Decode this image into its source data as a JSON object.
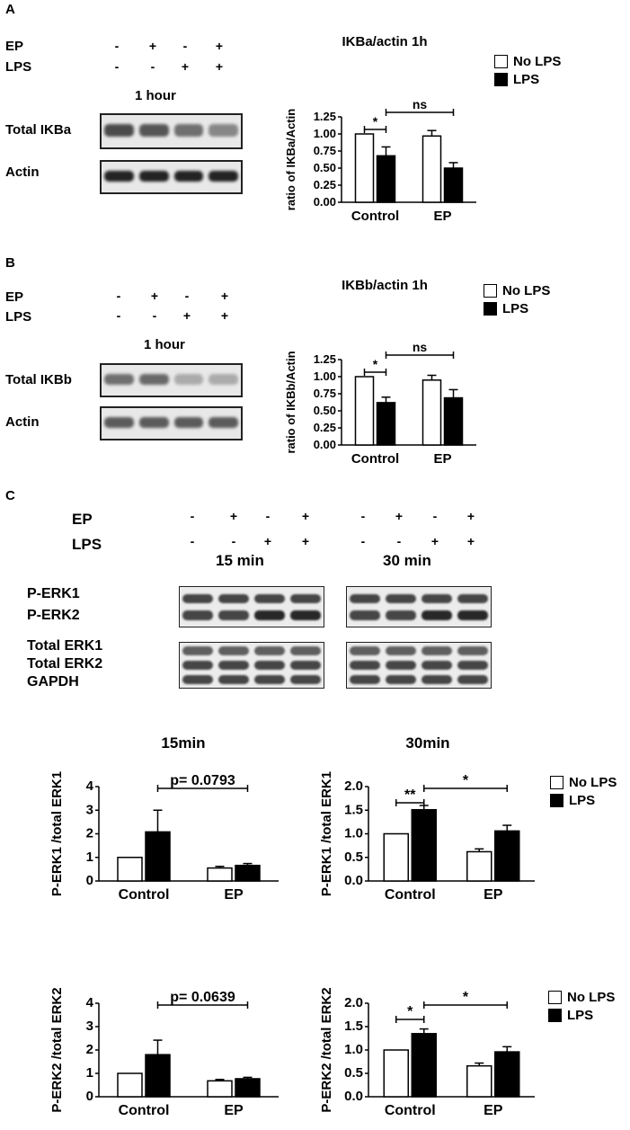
{
  "panels": [
    {
      "letter": "A",
      "treatments": [
        {
          "label": "EP",
          "signs": [
            "-",
            "+",
            "-",
            "+"
          ]
        },
        {
          "label": "LPS",
          "signs": [
            "-",
            "-",
            "+",
            "+"
          ]
        }
      ],
      "time": "1 hour",
      "blots": [
        {
          "label": "Total IKBa",
          "intensity": [
            0.8,
            0.75,
            0.62,
            0.5
          ]
        },
        {
          "label": "Actin",
          "intensity": [
            1.0,
            1.0,
            1.0,
            1.0
          ]
        }
      ]
    },
    {
      "letter": "B",
      "treatments": [
        {
          "label": "EP",
          "signs": [
            "-",
            "+",
            "-",
            "+"
          ]
        },
        {
          "label": "LPS",
          "signs": [
            "-",
            "-",
            "+",
            "+"
          ]
        }
      ],
      "time": "1 hour",
      "blots": [
        {
          "label": "Total IKBb",
          "intensity": [
            0.62,
            0.65,
            0.32,
            0.32
          ]
        },
        {
          "label": "Actin",
          "intensity": [
            0.72,
            0.72,
            0.72,
            0.72
          ]
        }
      ]
    },
    {
      "letter": "C",
      "treatments": [
        {
          "label": "EP",
          "signs": [
            "-",
            "+",
            "-",
            "+"
          ]
        },
        {
          "label": "LPS",
          "signs": [
            "-",
            "-",
            "+",
            "+"
          ]
        }
      ],
      "times": [
        "15 min",
        "30 min"
      ],
      "blot_labels": [
        "P-ERK1",
        "P-ERK2",
        "Total ERK1",
        "Total ERK2",
        "GAPDH"
      ]
    }
  ],
  "legend": {
    "no_lps": "No LPS",
    "lps": "LPS"
  },
  "chart_data": [
    {
      "type": "bar",
      "title": "IKBa/actin 1h",
      "categories": [
        "Control",
        "EP"
      ],
      "series": [
        {
          "name": "No LPS",
          "values": [
            1.0,
            0.97
          ],
          "errors": [
            0,
            0.08
          ],
          "color": "#ffffff"
        },
        {
          "name": "LPS",
          "values": [
            0.68,
            0.5
          ],
          "errors": [
            0.13,
            0.08
          ],
          "color": "#000000"
        }
      ],
      "ylabel": "ratio of IKBa/Actin",
      "ylim": [
        0,
        1.25
      ],
      "yticks": [
        "0.00",
        "0.25",
        "0.50",
        "0.75",
        "1.00",
        "1.25"
      ],
      "annotations": [
        {
          "text": "*",
          "from": [
            0,
            0
          ],
          "to": [
            0,
            1
          ]
        },
        {
          "text": "ns",
          "from": [
            0,
            1
          ],
          "to": [
            1,
            1
          ]
        }
      ]
    },
    {
      "type": "bar",
      "title": "IKBb/actin 1h",
      "categories": [
        "Control",
        "EP"
      ],
      "series": [
        {
          "name": "No LPS",
          "values": [
            1.0,
            0.95
          ],
          "errors": [
            0,
            0.07
          ],
          "color": "#ffffff"
        },
        {
          "name": "LPS",
          "values": [
            0.62,
            0.69
          ],
          "errors": [
            0.08,
            0.12
          ],
          "color": "#000000"
        }
      ],
      "ylabel": "ratio of IKBb/Actin",
      "ylim": [
        0,
        1.25
      ],
      "yticks": [
        "0.00",
        "0.25",
        "0.50",
        "0.75",
        "1.00",
        "1.25"
      ],
      "annotations": [
        {
          "text": "*",
          "from": [
            0,
            0
          ],
          "to": [
            0,
            1
          ]
        },
        {
          "text": "ns",
          "from": [
            0,
            1
          ],
          "to": [
            1,
            1
          ]
        }
      ]
    },
    {
      "type": "bar",
      "title": "15min",
      "categories": [
        "Control",
        "EP"
      ],
      "series": [
        {
          "name": "No LPS",
          "values": [
            1.0,
            0.55
          ],
          "errors": [
            0,
            0.07
          ],
          "color": "#ffffff"
        },
        {
          "name": "LPS",
          "values": [
            2.08,
            0.66
          ],
          "errors": [
            0.92,
            0.08
          ],
          "color": "#000000"
        }
      ],
      "ylabel": "P-ERK1  /total ERK1",
      "ylim": [
        0,
        4
      ],
      "yticks": [
        "0",
        "1",
        "2",
        "3",
        "4"
      ],
      "annotations": [
        {
          "text": "p= 0.0793",
          "from": [
            0,
            1
          ],
          "to": [
            1,
            1
          ]
        }
      ]
    },
    {
      "type": "bar",
      "title": "30min",
      "categories": [
        "Control",
        "EP"
      ],
      "series": [
        {
          "name": "No LPS",
          "values": [
            1.0,
            0.62
          ],
          "errors": [
            0,
            0.06
          ],
          "color": "#ffffff"
        },
        {
          "name": "LPS",
          "values": [
            1.51,
            1.06
          ],
          "errors": [
            0.09,
            0.12
          ],
          "color": "#000000"
        }
      ],
      "ylabel": "P-ERK1 /total ERK1",
      "ylim": [
        0,
        2.0
      ],
      "yticks": [
        "0.0",
        "0.5",
        "1.0",
        "1.5",
        "2.0"
      ],
      "annotations": [
        {
          "text": "**",
          "from": [
            0,
            0
          ],
          "to": [
            0,
            1
          ]
        },
        {
          "text": "*",
          "from": [
            0,
            1
          ],
          "to": [
            1,
            1
          ]
        }
      ]
    },
    {
      "type": "bar",
      "title": "",
      "categories": [
        "Control",
        "EP"
      ],
      "series": [
        {
          "name": "No LPS",
          "values": [
            1.0,
            0.68
          ],
          "errors": [
            0,
            0.06
          ],
          "color": "#ffffff"
        },
        {
          "name": "LPS",
          "values": [
            1.8,
            0.77
          ],
          "errors": [
            0.62,
            0.06
          ],
          "color": "#000000"
        }
      ],
      "ylabel": "P-ERK2 /total ERK2",
      "ylim": [
        0,
        4
      ],
      "yticks": [
        "0",
        "1",
        "2",
        "3",
        "4"
      ],
      "annotations": [
        {
          "text": "p= 0.0639",
          "from": [
            0,
            1
          ],
          "to": [
            1,
            1
          ]
        }
      ]
    },
    {
      "type": "bar",
      "title": "",
      "categories": [
        "Control",
        "EP"
      ],
      "series": [
        {
          "name": "No LPS",
          "values": [
            1.0,
            0.66
          ],
          "errors": [
            0,
            0.06
          ],
          "color": "#ffffff"
        },
        {
          "name": "LPS",
          "values": [
            1.35,
            0.96
          ],
          "errors": [
            0.1,
            0.11
          ],
          "color": "#000000"
        }
      ],
      "ylabel": "P-ERK2 /total ERK2",
      "ylim": [
        0,
        2.0
      ],
      "yticks": [
        "0.0",
        "0.5",
        "1.0",
        "1.5",
        "2.0"
      ],
      "annotations": [
        {
          "text": "*",
          "from": [
            0,
            0
          ],
          "to": [
            0,
            1
          ]
        },
        {
          "text": "*",
          "from": [
            0,
            1
          ],
          "to": [
            1,
            1
          ]
        }
      ]
    }
  ]
}
